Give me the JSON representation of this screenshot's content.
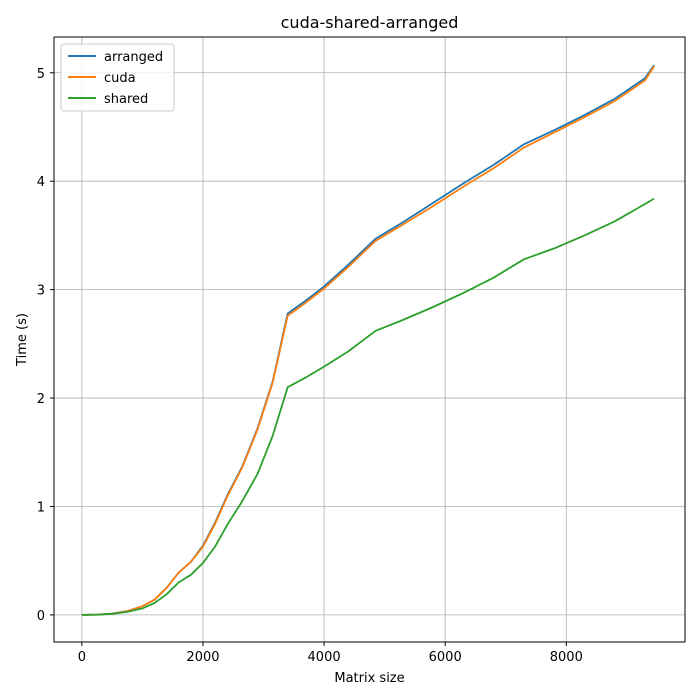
{
  "chart_data": {
    "type": "line",
    "title": "cuda-shared-arranged",
    "xlabel": "Matrix size",
    "ylabel": "Time (s)",
    "xlim": [
      -460,
      9960
    ],
    "ylim": [
      -0.25,
      5.33
    ],
    "xticks": [
      0,
      2000,
      4000,
      6000,
      8000
    ],
    "yticks": [
      0,
      1,
      2,
      3,
      4,
      5
    ],
    "grid": true,
    "legend_position": "top-left",
    "series": [
      {
        "name": "arranged",
        "color": "#1f77b4",
        "x": [
          0,
          250,
          500,
          750,
          1000,
          1200,
          1400,
          1600,
          1800,
          2000,
          2200,
          2400,
          2650,
          2900,
          3150,
          3400,
          3700,
          4000,
          4400,
          4850,
          5300,
          5800,
          6300,
          6800,
          7300,
          7800,
          8300,
          8800,
          9300,
          9450
        ],
        "y": [
          0.0,
          0.003,
          0.012,
          0.035,
          0.08,
          0.14,
          0.25,
          0.39,
          0.49,
          0.64,
          0.85,
          1.1,
          1.37,
          1.72,
          2.15,
          2.78,
          2.9,
          3.03,
          3.23,
          3.47,
          3.62,
          3.8,
          3.98,
          4.15,
          4.34,
          4.47,
          4.61,
          4.76,
          4.95,
          5.07
        ]
      },
      {
        "name": "cuda",
        "color": "#ff7f0e",
        "x": [
          0,
          250,
          500,
          750,
          1000,
          1200,
          1400,
          1600,
          1800,
          2000,
          2200,
          2400,
          2650,
          2900,
          3150,
          3400,
          3700,
          4000,
          4400,
          4850,
          5300,
          5800,
          6300,
          6800,
          7300,
          7800,
          8300,
          8800,
          9300,
          9450
        ],
        "y": [
          0.0,
          0.003,
          0.012,
          0.035,
          0.08,
          0.14,
          0.25,
          0.39,
          0.49,
          0.63,
          0.84,
          1.09,
          1.36,
          1.71,
          2.14,
          2.76,
          2.88,
          3.01,
          3.21,
          3.45,
          3.6,
          3.77,
          3.95,
          4.12,
          4.31,
          4.45,
          4.59,
          4.74,
          4.93,
          5.06
        ]
      },
      {
        "name": "shared",
        "color": "#2ca02c",
        "x": [
          0,
          250,
          500,
          750,
          1000,
          1200,
          1400,
          1600,
          1800,
          2000,
          2200,
          2400,
          2650,
          2900,
          3150,
          3400,
          3700,
          4000,
          4400,
          4850,
          5300,
          5800,
          6300,
          6800,
          7300,
          7800,
          8300,
          8800,
          9300,
          9450
        ],
        "y": [
          0.0,
          0.002,
          0.01,
          0.028,
          0.06,
          0.11,
          0.19,
          0.3,
          0.37,
          0.48,
          0.63,
          0.83,
          1.05,
          1.3,
          1.65,
          2.1,
          2.19,
          2.29,
          2.43,
          2.62,
          2.72,
          2.84,
          2.97,
          3.11,
          3.28,
          3.38,
          3.5,
          3.63,
          3.79,
          3.84
        ]
      }
    ]
  }
}
